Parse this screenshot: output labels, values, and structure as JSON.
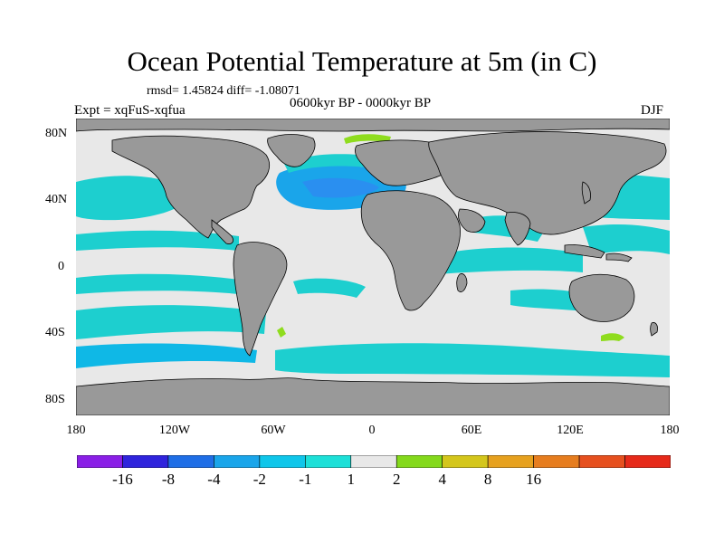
{
  "title": "Ocean Potential Temperature at 5m (in C)",
  "stats_line": "rmsd= 1.45824 diff= -1.08071",
  "period": "0600kyr BP - 0000kyr BP",
  "experiment": "Expt = xqFuS-xqfua",
  "season": "DJF",
  "colors": {
    "land": "#999999",
    "near_zero": "#e8e8e8",
    "cyan": "#1dcfcf",
    "light_blue": "#0fb8e6",
    "mid_blue": "#2a8ff0",
    "green": "#8fdc1e"
  },
  "chart_data": {
    "type": "heatmap",
    "projection": "cylindrical equidistant",
    "variable": "Ocean Potential Temperature at 5m",
    "units": "C",
    "lon_range": [
      -180,
      180
    ],
    "lat_range": [
      -90,
      90
    ],
    "x_ticks": [
      "180",
      "120W",
      "60W",
      "0",
      "60E",
      "120E",
      "180"
    ],
    "y_ticks": [
      "80N",
      "40N",
      "0",
      "40S",
      "80S"
    ],
    "colorbar": {
      "labels": [
        "-16",
        "-8",
        "-4",
        "-2",
        "-1",
        "1",
        "2",
        "4",
        "8",
        "16"
      ],
      "colors": [
        "#8a1fe6",
        "#2f24dc",
        "#1f6ee6",
        "#1aa5ea",
        "#0fc6ea",
        "#1de0d8",
        "#e8e8e8",
        "#84d91c",
        "#d4c61c",
        "#e6a11f",
        "#e67d1f",
        "#e6501f",
        "#e62a1a"
      ]
    }
  }
}
